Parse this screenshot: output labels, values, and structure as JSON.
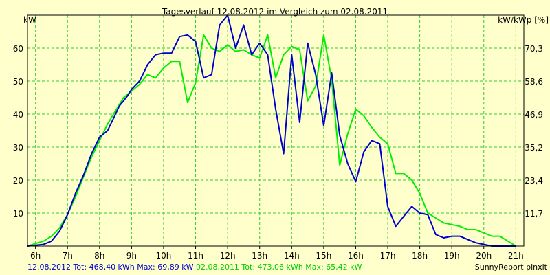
{
  "chart_data": {
    "type": "line",
    "title": "Tagesverlauf 12.08.2012 im Vergleich zum 02.08.2011",
    "ylabel_left": "kW",
    "ylabel_right": "kW/kWp [%]",
    "x_ticks": [
      "6h",
      "7h",
      "8h",
      "9h",
      "10h",
      "11h",
      "12h",
      "13h",
      "14h",
      "15h",
      "16h",
      "17h",
      "18h",
      "19h",
      "20h",
      "21h"
    ],
    "x_range": [
      5.75,
      21.25
    ],
    "ylim": [
      0,
      70
    ],
    "y_ticks_left": [
      10,
      20,
      30,
      40,
      50,
      60
    ],
    "y_ticks_right": [
      "11,7",
      "23,4",
      "35,2",
      "46,9",
      "58,6",
      "70,3"
    ],
    "grid": true,
    "series": [
      {
        "name": "12.08.2012",
        "color": "#0000cc",
        "x": [
          5.75,
          6.25,
          6.5,
          6.75,
          7.0,
          7.25,
          7.5,
          7.75,
          8.0,
          8.25,
          8.5,
          8.62,
          8.75,
          8.87,
          9.0,
          9.25,
          9.5,
          9.75,
          10.0,
          10.25,
          10.5,
          10.75,
          11.0,
          11.25,
          11.5,
          11.75,
          12.0,
          12.25,
          12.5,
          12.75,
          13.0,
          13.25,
          13.5,
          13.75,
          14.0,
          14.25,
          14.5,
          14.75,
          15.0,
          15.25,
          15.5,
          15.75,
          16.0,
          16.25,
          16.5,
          16.75,
          17.0,
          17.25,
          17.5,
          17.75,
          18.0,
          18.25,
          18.5,
          18.75,
          19.0,
          19.25,
          19.5,
          19.75,
          20.0,
          20.25,
          20.5,
          20.75,
          21.0
        ],
        "values": [
          0,
          0.5,
          1.5,
          4.5,
          9.5,
          16,
          21.5,
          28,
          33,
          35,
          40,
          42.5,
          44,
          45.5,
          47.5,
          50,
          55,
          58,
          58.5,
          58.5,
          63.5,
          64,
          62,
          51,
          52,
          67,
          70,
          60,
          67,
          58,
          61.5,
          58,
          41.5,
          28,
          58,
          37.5,
          61.5,
          52,
          36.5,
          52.5,
          33.5,
          25,
          19.5,
          28.5,
          32,
          31,
          12,
          6,
          9,
          12,
          10,
          9.5,
          3.5,
          2.5,
          3,
          3,
          2,
          1,
          0.5,
          0,
          0,
          0,
          0
        ]
      },
      {
        "name": "02.08.2011",
        "color": "#00ee00",
        "x": [
          5.75,
          6.25,
          6.5,
          6.75,
          7.0,
          7.25,
          7.5,
          7.75,
          8.0,
          8.25,
          8.5,
          8.75,
          9.0,
          9.25,
          9.5,
          9.75,
          10.0,
          10.25,
          10.5,
          10.75,
          11.0,
          11.25,
          11.5,
          11.75,
          12.0,
          12.25,
          12.5,
          12.75,
          13.0,
          13.25,
          13.5,
          13.75,
          14.0,
          14.25,
          14.5,
          14.75,
          15.0,
          15.25,
          15.5,
          15.75,
          16.0,
          16.25,
          16.5,
          16.75,
          17.0,
          17.25,
          17.5,
          17.75,
          18.0,
          18.25,
          18.5,
          18.75,
          19.0,
          19.25,
          19.5,
          19.75,
          20.0,
          20.25,
          20.5,
          20.75,
          21.0
        ],
        "values": [
          0,
          1.5,
          3,
          5.5,
          9.5,
          15,
          21,
          27,
          32,
          37,
          41,
          45,
          47,
          49,
          52,
          51,
          54,
          56,
          56,
          43.5,
          49.5,
          64,
          60,
          59,
          61,
          59,
          59.5,
          58,
          57,
          64,
          51,
          58,
          60.5,
          59.5,
          44,
          48.5,
          64,
          50.5,
          24.5,
          34,
          41.5,
          39.5,
          36,
          33,
          31,
          22,
          22,
          20,
          16,
          10,
          8.5,
          7,
          6.5,
          6,
          5,
          5,
          4,
          3,
          3,
          1.5,
          0
        ]
      }
    ],
    "footer_line": [
      {
        "text": "12.08.2012 Tot: 468,40 kWh Max: 69,89 kW",
        "color": "#0000cc"
      },
      {
        "text": " 02.08.2011 Tot: 473,06 kWh Max: 65,42 kW",
        "color": "#00cc00"
      }
    ],
    "credit": "SunnyReport pinxit"
  }
}
